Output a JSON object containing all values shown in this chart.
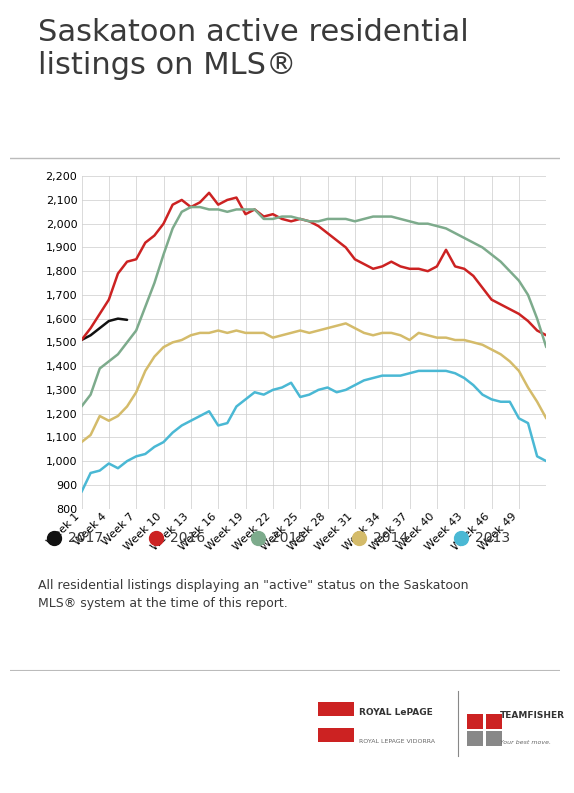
{
  "title": "Saskatoon active residential\nlistings on MLS®",
  "footnote": "All residential listings displaying an \"active\" status on the Saskatoon\nMLS® system at the time of this report.",
  "x_labels": [
    "Week 1",
    "Week 4",
    "Week 7",
    "Week 10",
    "Week 13",
    "Week 16",
    "Week 19",
    "Week 22",
    "Week 25",
    "Week 28",
    "Week 31",
    "Week 34",
    "Week 37",
    "Week 40",
    "Week 43",
    "Week 46",
    "Week 49"
  ],
  "x_ticks": [
    0,
    3,
    6,
    9,
    12,
    15,
    18,
    21,
    24,
    27,
    30,
    33,
    36,
    39,
    42,
    45,
    48
  ],
  "ylim": [
    800,
    2200
  ],
  "yticks": [
    800,
    900,
    1000,
    1100,
    1200,
    1300,
    1400,
    1500,
    1600,
    1700,
    1800,
    1900,
    2000,
    2100,
    2200
  ],
  "series": {
    "2017": {
      "color": "#111111",
      "linewidth": 1.8,
      "data": [
        1510,
        1530,
        1560,
        1590,
        1600,
        1595,
        null,
        null,
        null,
        null,
        null,
        null,
        null,
        null,
        null,
        null,
        null,
        null,
        null,
        null,
        null,
        null,
        null,
        null,
        null,
        null,
        null,
        null,
        null,
        null,
        null,
        null,
        null,
        null,
        null,
        null,
        null,
        null,
        null,
        null,
        null,
        null,
        null,
        null,
        null,
        null,
        null,
        null,
        null,
        null,
        null,
        null
      ]
    },
    "2016": {
      "color": "#cc2222",
      "linewidth": 1.8,
      "data": [
        1510,
        1560,
        1620,
        1680,
        1790,
        1840,
        1850,
        1920,
        1950,
        2000,
        2080,
        2100,
        2070,
        2090,
        2130,
        2080,
        2100,
        2110,
        2040,
        2060,
        2030,
        2040,
        2020,
        2010,
        2020,
        2010,
        1990,
        1960,
        1930,
        1900,
        1850,
        1830,
        1810,
        1820,
        1840,
        1820,
        1810,
        1810,
        1800,
        1820,
        1890,
        1820,
        1810,
        1780,
        1730,
        1680,
        1660,
        1640,
        1620,
        1590,
        1550,
        1530
      ]
    },
    "2015": {
      "color": "#7dab8c",
      "linewidth": 1.8,
      "data": [
        1230,
        1280,
        1390,
        1420,
        1450,
        1500,
        1550,
        1650,
        1750,
        1870,
        1980,
        2050,
        2070,
        2070,
        2060,
        2060,
        2050,
        2060,
        2060,
        2060,
        2020,
        2020,
        2030,
        2030,
        2020,
        2010,
        2010,
        2020,
        2020,
        2020,
        2010,
        2020,
        2030,
        2030,
        2030,
        2020,
        2010,
        2000,
        2000,
        1990,
        1980,
        1960,
        1940,
        1920,
        1900,
        1870,
        1840,
        1800,
        1760,
        1700,
        1600,
        1480
      ]
    },
    "2014": {
      "color": "#d4bb6a",
      "linewidth": 1.8,
      "data": [
        1080,
        1110,
        1190,
        1170,
        1190,
        1230,
        1290,
        1380,
        1440,
        1480,
        1500,
        1510,
        1530,
        1540,
        1540,
        1550,
        1540,
        1550,
        1540,
        1540,
        1540,
        1520,
        1530,
        1540,
        1550,
        1540,
        1550,
        1560,
        1570,
        1580,
        1560,
        1540,
        1530,
        1540,
        1540,
        1530,
        1510,
        1540,
        1530,
        1520,
        1520,
        1510,
        1510,
        1500,
        1490,
        1470,
        1450,
        1420,
        1380,
        1310,
        1250,
        1180
      ]
    },
    "2013": {
      "color": "#4ab8d4",
      "linewidth": 1.8,
      "data": [
        870,
        950,
        960,
        990,
        970,
        1000,
        1020,
        1030,
        1060,
        1080,
        1120,
        1150,
        1170,
        1190,
        1210,
        1150,
        1160,
        1230,
        1260,
        1290,
        1280,
        1300,
        1310,
        1330,
        1270,
        1280,
        1300,
        1310,
        1290,
        1300,
        1320,
        1340,
        1350,
        1360,
        1360,
        1360,
        1370,
        1380,
        1380,
        1380,
        1380,
        1370,
        1350,
        1320,
        1280,
        1260,
        1250,
        1250,
        1180,
        1160,
        1020,
        1000
      ]
    }
  },
  "background_color": "#ffffff",
  "grid_color": "#cccccc",
  "title_fontsize": 22,
  "tick_fontsize": 8,
  "legend_fontsize": 10,
  "footnote_fontsize": 9
}
